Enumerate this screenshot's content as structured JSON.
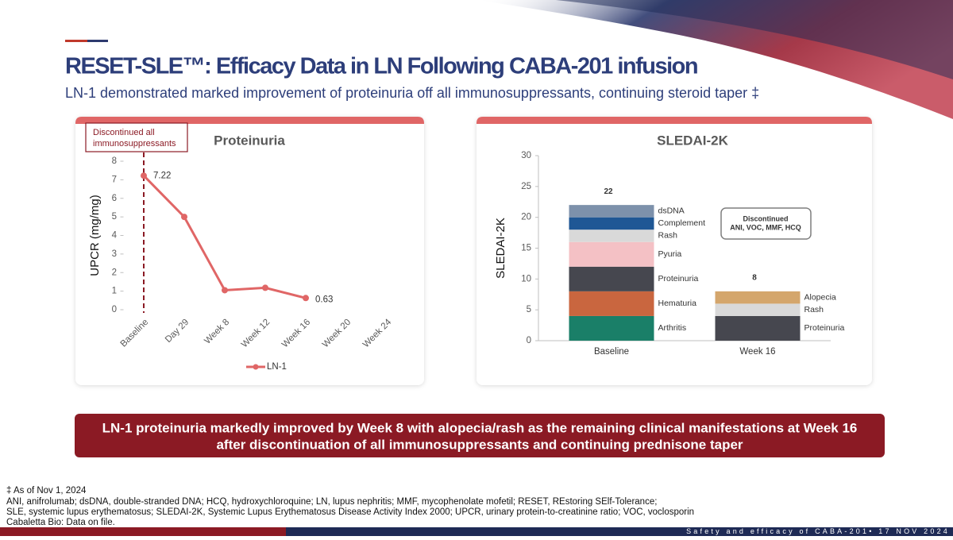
{
  "header": {
    "title": "RESET-SLE™: Efficacy Data in LN Following CABA-201 infusion",
    "subtitle": "LN-1 demonstrated marked improvement of proteinuria off all immunosuppressants, continuing steroid taper ‡"
  },
  "chart_data": [
    {
      "type": "line",
      "title": "Proteinuria",
      "y_label": "UPCR (mg/mg)",
      "categories": [
        "Baseline",
        "Day 29",
        "Week 8",
        "Week 12",
        "Week 16",
        "Week 20",
        "Week 24"
      ],
      "series": [
        {
          "name": "LN-1",
          "color": "#e06666",
          "values": [
            7.22,
            5.0,
            1.05,
            1.18,
            0.63,
            null,
            null
          ],
          "value_labels": [
            "7.22",
            null,
            null,
            null,
            "0.63",
            null,
            null
          ]
        }
      ],
      "ylim": [
        0,
        8
      ],
      "yticks": [
        0,
        1,
        2,
        3,
        4,
        5,
        6,
        7,
        8
      ],
      "grid": false,
      "legend": "bottom",
      "annotation_lines": [
        "Discontinued all",
        "immunosuppressants"
      ]
    },
    {
      "type": "bar",
      "stacked": true,
      "title": "SLEDAI-2K",
      "y_label": "SLEDAI-2K",
      "categories": [
        "Baseline",
        "Week 16"
      ],
      "series": [
        {
          "name": "Arthritis",
          "color": "#1a7f68",
          "values": [
            4,
            null
          ]
        },
        {
          "name": "Hematuria",
          "color": "#c9663f",
          "values": [
            4,
            null
          ]
        },
        {
          "name": "Proteinuria",
          "color": "#46474f",
          "values": [
            4,
            4
          ]
        },
        {
          "name": "Pyuria",
          "color": "#f4c1c5",
          "values": [
            4,
            null
          ]
        },
        {
          "name": "Rash",
          "color": "#d9d9d9",
          "values": [
            2,
            2
          ]
        },
        {
          "name": "Complement",
          "color": "#1f5795",
          "values": [
            2,
            null
          ]
        },
        {
          "name": "dsDNA",
          "color": "#7d91ab",
          "values": [
            2,
            null
          ]
        },
        {
          "name": "Alopecia",
          "color": "#d4a66c",
          "values": [
            null,
            2
          ]
        }
      ],
      "totals": [
        22,
        8
      ],
      "ylim": [
        0,
        30
      ],
      "yticks": [
        0,
        5,
        10,
        15,
        20,
        25,
        30
      ],
      "grid": false,
      "callout_lines": [
        "Discontinued",
        "ANI, VOC, MMF, HCQ"
      ]
    }
  ],
  "callout": [
    "LN-1 proteinuria markedly improved by Week 8 with alopecia/rash as the remaining clinical manifestations at Week 16",
    "after discontinuation of all immunosuppressants and continuing prednisone taper"
  ],
  "footnotes": [
    "‡ As of Nov 1, 2024",
    "ANI, anifrolumab; dsDNA, double-stranded DNA; HCQ, hydroxychloroquine; LN, lupus nephritis; MMF, mycophenolate mofetil; RESET, REstoring SElf-Tolerance;",
    "SLE, systemic lupus erythematosus; SLEDAI-2K, Systemic Lupus Erythematosus Disease Activity Index 2000; UPCR, urinary protein-to-creatinine ratio; VOC, voclosporin",
    "Cabaletta Bio: Data on file."
  ],
  "footer": "Safety and efficacy of CABA-201• 17 NOV 2024"
}
